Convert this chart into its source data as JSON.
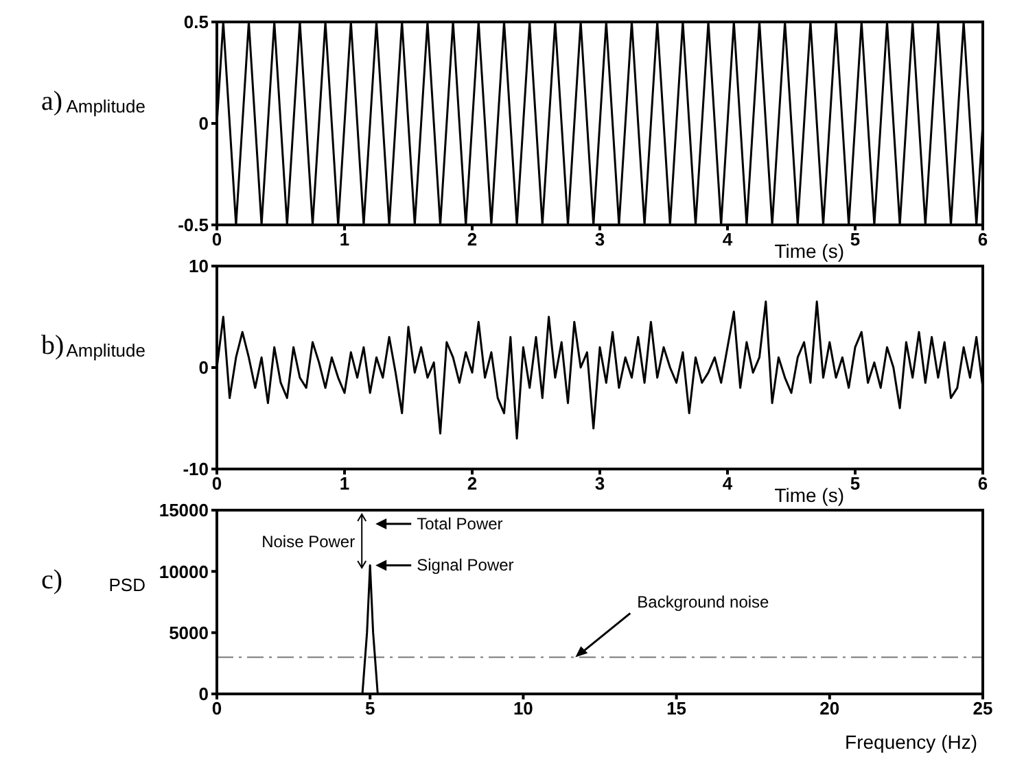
{
  "chart_data": [
    {
      "type": "line",
      "xlabel": "Time (s)",
      "ylabel": "Amplitude",
      "annotations": [
        "a)"
      ],
      "xlim": [
        0,
        6
      ],
      "xticks": [
        0,
        1,
        2,
        3,
        4,
        5,
        6
      ],
      "ylim": [
        -0.5,
        0.5
      ],
      "yticks": [
        -0.5,
        0,
        0.5
      ],
      "x": [
        0,
        0.05,
        0.1,
        0.15,
        0.2,
        0.25,
        0.3,
        0.35,
        0.4,
        0.45,
        0.5,
        0.55,
        0.6,
        0.65,
        0.7,
        0.75,
        0.8,
        0.85,
        0.9,
        0.95,
        1,
        1.05,
        1.1,
        1.15,
        1.2,
        1.25,
        1.3,
        1.35,
        1.4,
        1.45,
        1.5,
        1.55,
        1.6,
        1.65,
        1.7,
        1.75,
        1.8,
        1.85,
        1.9,
        1.95,
        2,
        2.05,
        2.1,
        2.15,
        2.2,
        2.25,
        2.3,
        2.35,
        2.4,
        2.45,
        2.5,
        2.55,
        2.6,
        2.65,
        2.7,
        2.75,
        2.8,
        2.85,
        2.9,
        2.95,
        3,
        3.05,
        3.1,
        3.15,
        3.2,
        3.25,
        3.3,
        3.35,
        3.4,
        3.45,
        3.5,
        3.55,
        3.6,
        3.65,
        3.7,
        3.75,
        3.8,
        3.85,
        3.9,
        3.95,
        4,
        4.05,
        4.1,
        4.15,
        4.2,
        4.25,
        4.3,
        4.35,
        4.4,
        4.45,
        4.5,
        4.55,
        4.6,
        4.65,
        4.7,
        4.75,
        4.8,
        4.85,
        4.9,
        4.95,
        5,
        5.05,
        5.1,
        5.15,
        5.2,
        5.25,
        5.3,
        5.35,
        5.4,
        5.45,
        5.5,
        5.55,
        5.6,
        5.65,
        5.7,
        5.75,
        5.8,
        5.85,
        5.9,
        5.95,
        6
      ],
      "series": [
        {
          "color": "#000000",
          "values": [
            0,
            0.5,
            0,
            -0.5,
            0,
            0.5,
            0,
            -0.5,
            0,
            0.5,
            0,
            -0.5,
            0,
            0.5,
            0,
            -0.5,
            0,
            0.5,
            0,
            -0.5,
            0,
            0.5,
            0,
            -0.5,
            0,
            0.5,
            0,
            -0.5,
            0,
            0.5,
            0,
            -0.5,
            0,
            0.5,
            0,
            -0.5,
            0,
            0.5,
            0,
            -0.5,
            0,
            0.5,
            0,
            -0.5,
            0,
            0.5,
            0,
            -0.5,
            0,
            0.5,
            0,
            -0.5,
            0,
            0.5,
            0,
            -0.5,
            0,
            0.5,
            0,
            -0.5,
            0,
            0.5,
            0,
            -0.5,
            0,
            0.5,
            0,
            -0.5,
            0,
            0.5,
            0,
            -0.5,
            0,
            0.5,
            0,
            -0.5,
            0,
            0.5,
            0,
            -0.5,
            0,
            0.5,
            0,
            -0.5,
            0,
            0.5,
            0,
            -0.5,
            0,
            0.5,
            0,
            -0.5,
            0,
            0.5,
            0,
            -0.5,
            0,
            0.5,
            0,
            -0.5,
            0,
            0.5,
            0,
            -0.5,
            0,
            0.5,
            0,
            -0.5,
            0,
            0.5,
            0,
            -0.5,
            0,
            0.5,
            0,
            -0.5,
            0,
            0.5,
            0,
            -0.5,
            0
          ]
        }
      ]
    },
    {
      "type": "line",
      "xlabel": "Time (s)",
      "ylabel": "Amplitude",
      "annotations": [
        "b)"
      ],
      "xlim": [
        0,
        6
      ],
      "xticks": [
        0,
        1,
        2,
        3,
        4,
        5,
        6
      ],
      "ylim": [
        -10,
        10
      ],
      "yticks": [
        -10,
        0,
        10
      ],
      "x": [
        0,
        0.05,
        0.1,
        0.15,
        0.2,
        0.25,
        0.3,
        0.35,
        0.4,
        0.45,
        0.5,
        0.55,
        0.6,
        0.65,
        0.7,
        0.75,
        0.8,
        0.85,
        0.9,
        0.95,
        1,
        1.05,
        1.1,
        1.15,
        1.2,
        1.25,
        1.3,
        1.35,
        1.4,
        1.45,
        1.5,
        1.55,
        1.6,
        1.65,
        1.7,
        1.75,
        1.8,
        1.85,
        1.9,
        1.95,
        2,
        2.05,
        2.1,
        2.15,
        2.2,
        2.25,
        2.3,
        2.35,
        2.4,
        2.45,
        2.5,
        2.55,
        2.6,
        2.65,
        2.7,
        2.75,
        2.8,
        2.85,
        2.9,
        2.95,
        3,
        3.05,
        3.1,
        3.15,
        3.2,
        3.25,
        3.3,
        3.35,
        3.4,
        3.45,
        3.5,
        3.55,
        3.6,
        3.65,
        3.7,
        3.75,
        3.8,
        3.85,
        3.9,
        3.95,
        4,
        4.05,
        4.1,
        4.15,
        4.2,
        4.25,
        4.3,
        4.35,
        4.4,
        4.45,
        4.5,
        4.55,
        4.6,
        4.65,
        4.7,
        4.75,
        4.8,
        4.85,
        4.9,
        4.95,
        5,
        5.05,
        5.1,
        5.15,
        5.2,
        5.25,
        5.3,
        5.35,
        5.4,
        5.45,
        5.5,
        5.55,
        5.6,
        5.65,
        5.7,
        5.75,
        5.8,
        5.85,
        5.9,
        5.95,
        6
      ],
      "series": [
        {
          "color": "#000000",
          "values": [
            0,
            5,
            -3,
            1,
            3.5,
            1,
            -2,
            1,
            -3.5,
            2,
            -1.5,
            -3,
            2,
            -1,
            -2,
            2.5,
            0.5,
            -2,
            1,
            -1,
            -2.5,
            1.5,
            -1,
            2,
            -2.5,
            1,
            -1,
            3,
            -0.5,
            -4.5,
            4,
            -0.5,
            2,
            -1,
            0.5,
            -6.5,
            2.5,
            1,
            -1.5,
            1.5,
            -0.5,
            4.5,
            -1,
            1.5,
            -3,
            -4.5,
            3,
            -7,
            2,
            -2,
            3,
            -3,
            5,
            -1,
            2.5,
            -3.5,
            4.5,
            0,
            1.5,
            -6,
            2,
            -1.5,
            3.5,
            -2,
            1,
            -1,
            3,
            -1.5,
            4.5,
            -1,
            2,
            0,
            -1.5,
            1.5,
            -4.5,
            1,
            -1.5,
            -0.5,
            1,
            -1.5,
            2,
            5.5,
            -2,
            2.5,
            -0.5,
            1,
            6.5,
            -3.5,
            1,
            -1,
            -2.5,
            1,
            2.5,
            -1.5,
            6.5,
            -1,
            2.5,
            -1,
            1,
            -2,
            2,
            3.5,
            -1.5,
            0.5,
            -2,
            2,
            0,
            -4,
            2.5,
            -1,
            3.5,
            -1.5,
            3,
            -1,
            2.5,
            -3,
            -2,
            2,
            -1,
            3,
            -2
          ]
        }
      ]
    },
    {
      "type": "line",
      "xlabel": "Frequency (Hz)",
      "ylabel": "PSD",
      "xlim": [
        0,
        25
      ],
      "xticks": [
        0,
        5,
        10,
        15,
        20,
        25
      ],
      "ylim": [
        0,
        15000
      ],
      "yticks": [
        0,
        5000,
        10000,
        15000
      ],
      "annotations": [
        "c)",
        "Noise Power",
        "Total Power",
        {
          "text": "Signal Power",
          "x": 5,
          "y": 10500
        },
        {
          "text": "Background noise",
          "x": 11.7,
          "y": 3000
        }
      ],
      "ref_lines": [
        {
          "axis": "y",
          "value": 3000,
          "color": "#777777",
          "line_style": "dashed"
        }
      ],
      "x": [
        0,
        4.75,
        4.9,
        5,
        5.1,
        5.25,
        25
      ],
      "series": [
        {
          "color": "#000000",
          "values": [
            0,
            0,
            5000,
            10500,
            5000,
            0,
            0
          ]
        }
      ]
    }
  ]
}
